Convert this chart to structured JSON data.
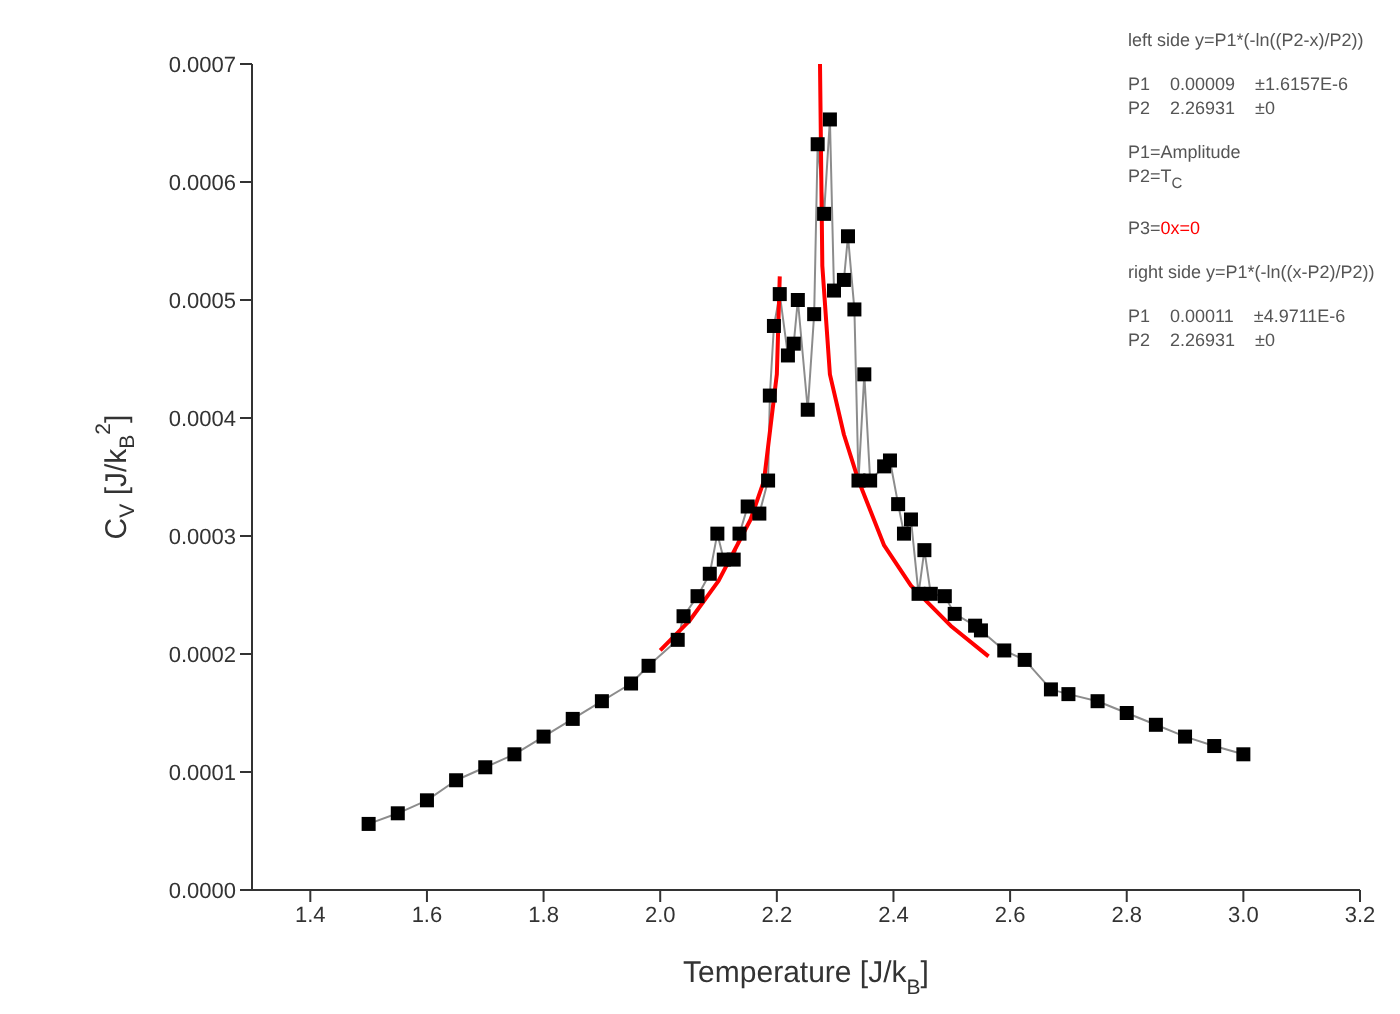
{
  "chart_data": {
    "type": "line",
    "xlabel": "Temperature [J/k$_{B}$]",
    "ylabel": "C$_{V}$ [J/k$_{B}$$^{2}$]",
    "xlim": [
      1.3,
      3.2
    ],
    "ylim": [
      0,
      0.0007
    ],
    "xticks": [
      {
        "value": 1.4,
        "label": "1.4"
      },
      {
        "value": 1.6,
        "label": "1.6"
      },
      {
        "value": 1.8,
        "label": "1.8"
      },
      {
        "value": 2.0,
        "label": "2.0"
      },
      {
        "value": 2.2,
        "label": "2.2"
      },
      {
        "value": 2.4,
        "label": "2.4"
      },
      {
        "value": 2.6,
        "label": "2.6"
      },
      {
        "value": 2.8,
        "label": "2.8"
      },
      {
        "value": 3.0,
        "label": "3.0"
      },
      {
        "value": 3.2,
        "label": "3.2"
      }
    ],
    "yticks": [
      {
        "value": 0,
        "label": "0.0000"
      },
      {
        "value": 0.0001,
        "label": "0.0001"
      },
      {
        "value": 0.0002,
        "label": "0.0002"
      },
      {
        "value": 0.0003,
        "label": "0.0003"
      },
      {
        "value": 0.0004,
        "label": "0.0004"
      },
      {
        "value": 0.0005,
        "label": "0.0005"
      },
      {
        "value": 0.0006,
        "label": "0.0006"
      },
      {
        "value": 0.0007,
        "label": "0.0007"
      }
    ],
    "series": [
      {
        "color": "#000000",
        "marker": "square",
        "x": [
          1.5,
          1.55,
          1.6,
          1.65,
          1.7,
          1.75,
          1.8,
          1.85,
          1.9,
          1.95,
          1.98,
          2.03,
          2.04,
          2.064,
          2.085,
          2.098,
          2.109,
          2.126,
          2.136,
          2.15,
          2.17,
          2.185,
          2.188,
          2.195,
          2.205,
          2.219,
          2.229,
          2.236,
          2.253,
          2.264,
          2.27,
          2.281,
          2.291,
          2.298,
          2.315,
          2.322,
          2.333,
          2.34,
          2.35,
          2.36,
          2.384,
          2.394,
          2.408,
          2.418,
          2.43,
          2.443,
          2.453,
          2.464,
          2.488,
          2.505,
          2.54,
          2.55,
          2.59,
          2.625,
          2.67,
          2.7,
          2.75,
          2.8,
          2.85,
          2.9,
          2.95,
          3.0
        ],
        "values": [
          5.6e-05,
          6.5e-05,
          7.6e-05,
          9.3e-05,
          0.000104,
          0.000115,
          0.00013,
          0.000145,
          0.00016,
          0.000175,
          0.00019,
          0.000212,
          0.000232,
          0.000249,
          0.000268,
          0.000302,
          0.00028,
          0.00028,
          0.000302,
          0.000325,
          0.000319,
          0.000347,
          0.000419,
          0.000478,
          0.000505,
          0.000453,
          0.000463,
          0.0005,
          0.000407,
          0.000488,
          0.000632,
          0.000573,
          0.000653,
          0.000508,
          0.000517,
          0.000554,
          0.000492,
          0.000347,
          0.000437,
          0.000347,
          0.000359,
          0.000364,
          0.000327,
          0.000302,
          0.000314,
          0.000251,
          0.000288,
          0.000251,
          0.000249,
          0.000234,
          0.000224,
          0.00022,
          0.000203,
          0.000195,
          0.00017,
          0.000166,
          0.00016,
          0.00015,
          0.00014,
          0.00013,
          0.000122,
          0.000115
        ]
      },
      {
        "color": "#ff0000",
        "marker": "none",
        "x": [
          2.0,
          2.05,
          2.1,
          2.155,
          2.178,
          2.2,
          2.205
        ],
        "values": [
          0.000203,
          0.000228,
          0.000262,
          0.000314,
          0.000347,
          0.000437,
          0.00052
        ]
      },
      {
        "color": "#ff0000",
        "marker": "none",
        "x": [
          2.274,
          2.278,
          2.291,
          2.315,
          2.34,
          2.384,
          2.43,
          2.498,
          2.563
        ],
        "values": [
          0.0007,
          0.000529,
          0.000437,
          0.000386,
          0.000347,
          0.000292,
          0.000258,
          0.000224,
          0.000198
        ]
      }
    ],
    "annotations": [
      "left side y=P1*(-ln((P2-x)/P2))",
      "P1    0.00009    ±1.6157E-6",
      "P2    2.26931    ±0",
      "P1=Amplitude",
      "P2=T$_{C}$",
      "P3=0x=0",
      "right side y=P1*(-ln((x-P2)/P2))",
      "P1    0.00011    ±4.9711E-6",
      "P2    2.26931    ±0"
    ]
  }
}
